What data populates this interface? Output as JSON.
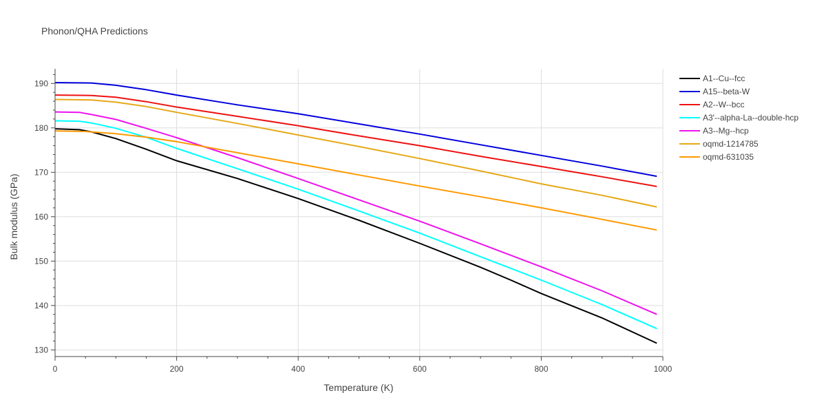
{
  "chart_data": {
    "type": "line",
    "title": "Phonon/QHA Predictions",
    "xlabel": "Temperature (K)",
    "ylabel": "Bulk modulus (GPa)",
    "xlim": [
      0,
      1000
    ],
    "ylim": [
      128.5,
      193.3
    ],
    "xticks": [
      0,
      200,
      400,
      600,
      800,
      1000
    ],
    "yticks": [
      130,
      140,
      150,
      160,
      170,
      180,
      190
    ],
    "grid": true,
    "legend_position": "right",
    "series": [
      {
        "name": "A1--Cu--fcc",
        "color": "#000000",
        "x": [
          0,
          40,
          60,
          100,
          150,
          200,
          300,
          400,
          500,
          600,
          700,
          750,
          800,
          900,
          990
        ],
        "y": [
          179.8,
          179.6,
          179.1,
          177.6,
          175.2,
          172.6,
          168.6,
          164.1,
          159.2,
          154.0,
          148.6,
          145.7,
          142.7,
          137.2,
          131.5
        ]
      },
      {
        "name": "A15--beta-W",
        "color": "#0000dd",
        "x": [
          0,
          60,
          100,
          150,
          200,
          300,
          400,
          500,
          600,
          700,
          800,
          900,
          990
        ],
        "y": [
          190.2,
          190.1,
          189.6,
          188.6,
          187.4,
          185.2,
          183.2,
          180.9,
          178.6,
          176.2,
          173.8,
          171.4,
          169.1
        ]
      },
      {
        "name": "A2--W--bcc",
        "color": "#ee1111",
        "x": [
          0,
          60,
          100,
          150,
          200,
          300,
          400,
          500,
          600,
          700,
          800,
          900,
          990
        ],
        "y": [
          187.4,
          187.3,
          186.9,
          185.9,
          184.7,
          182.6,
          180.5,
          178.2,
          176.0,
          173.6,
          171.3,
          169.0,
          166.8
        ]
      },
      {
        "name": "A3'--alpha-La--double-hcp",
        "color": "#00ffff",
        "x": [
          0,
          40,
          60,
          100,
          150,
          200,
          300,
          400,
          500,
          600,
          700,
          800,
          900,
          990
        ],
        "y": [
          181.6,
          181.5,
          181.1,
          179.9,
          177.9,
          175.4,
          170.8,
          166.2,
          161.3,
          156.3,
          151.0,
          145.7,
          140.2,
          134.8
        ]
      },
      {
        "name": "A3--Mg--hcp",
        "color": "#ee11ee",
        "x": [
          0,
          40,
          60,
          100,
          150,
          200,
          300,
          400,
          500,
          600,
          700,
          800,
          900,
          990
        ],
        "y": [
          183.6,
          183.5,
          183.0,
          181.9,
          179.9,
          177.8,
          173.3,
          168.6,
          163.8,
          159.0,
          153.9,
          148.7,
          143.3,
          138.0
        ]
      },
      {
        "name": "oqmd-1214785",
        "color": "#e6a817",
        "x": [
          0,
          60,
          100,
          150,
          200,
          300,
          400,
          500,
          600,
          700,
          800,
          900,
          990
        ],
        "y": [
          186.4,
          186.3,
          185.8,
          184.8,
          183.5,
          181.0,
          178.4,
          175.8,
          173.1,
          170.3,
          167.4,
          164.8,
          162.2
        ]
      },
      {
        "name": "oqmd-631035",
        "color": "#ff9900",
        "x": [
          0,
          50,
          100,
          150,
          200,
          300,
          400,
          500,
          600,
          700,
          800,
          900,
          990
        ],
        "y": [
          179.3,
          179.2,
          178.7,
          177.9,
          176.9,
          174.4,
          171.9,
          169.4,
          166.9,
          164.5,
          162.0,
          159.4,
          157.0
        ]
      }
    ]
  }
}
